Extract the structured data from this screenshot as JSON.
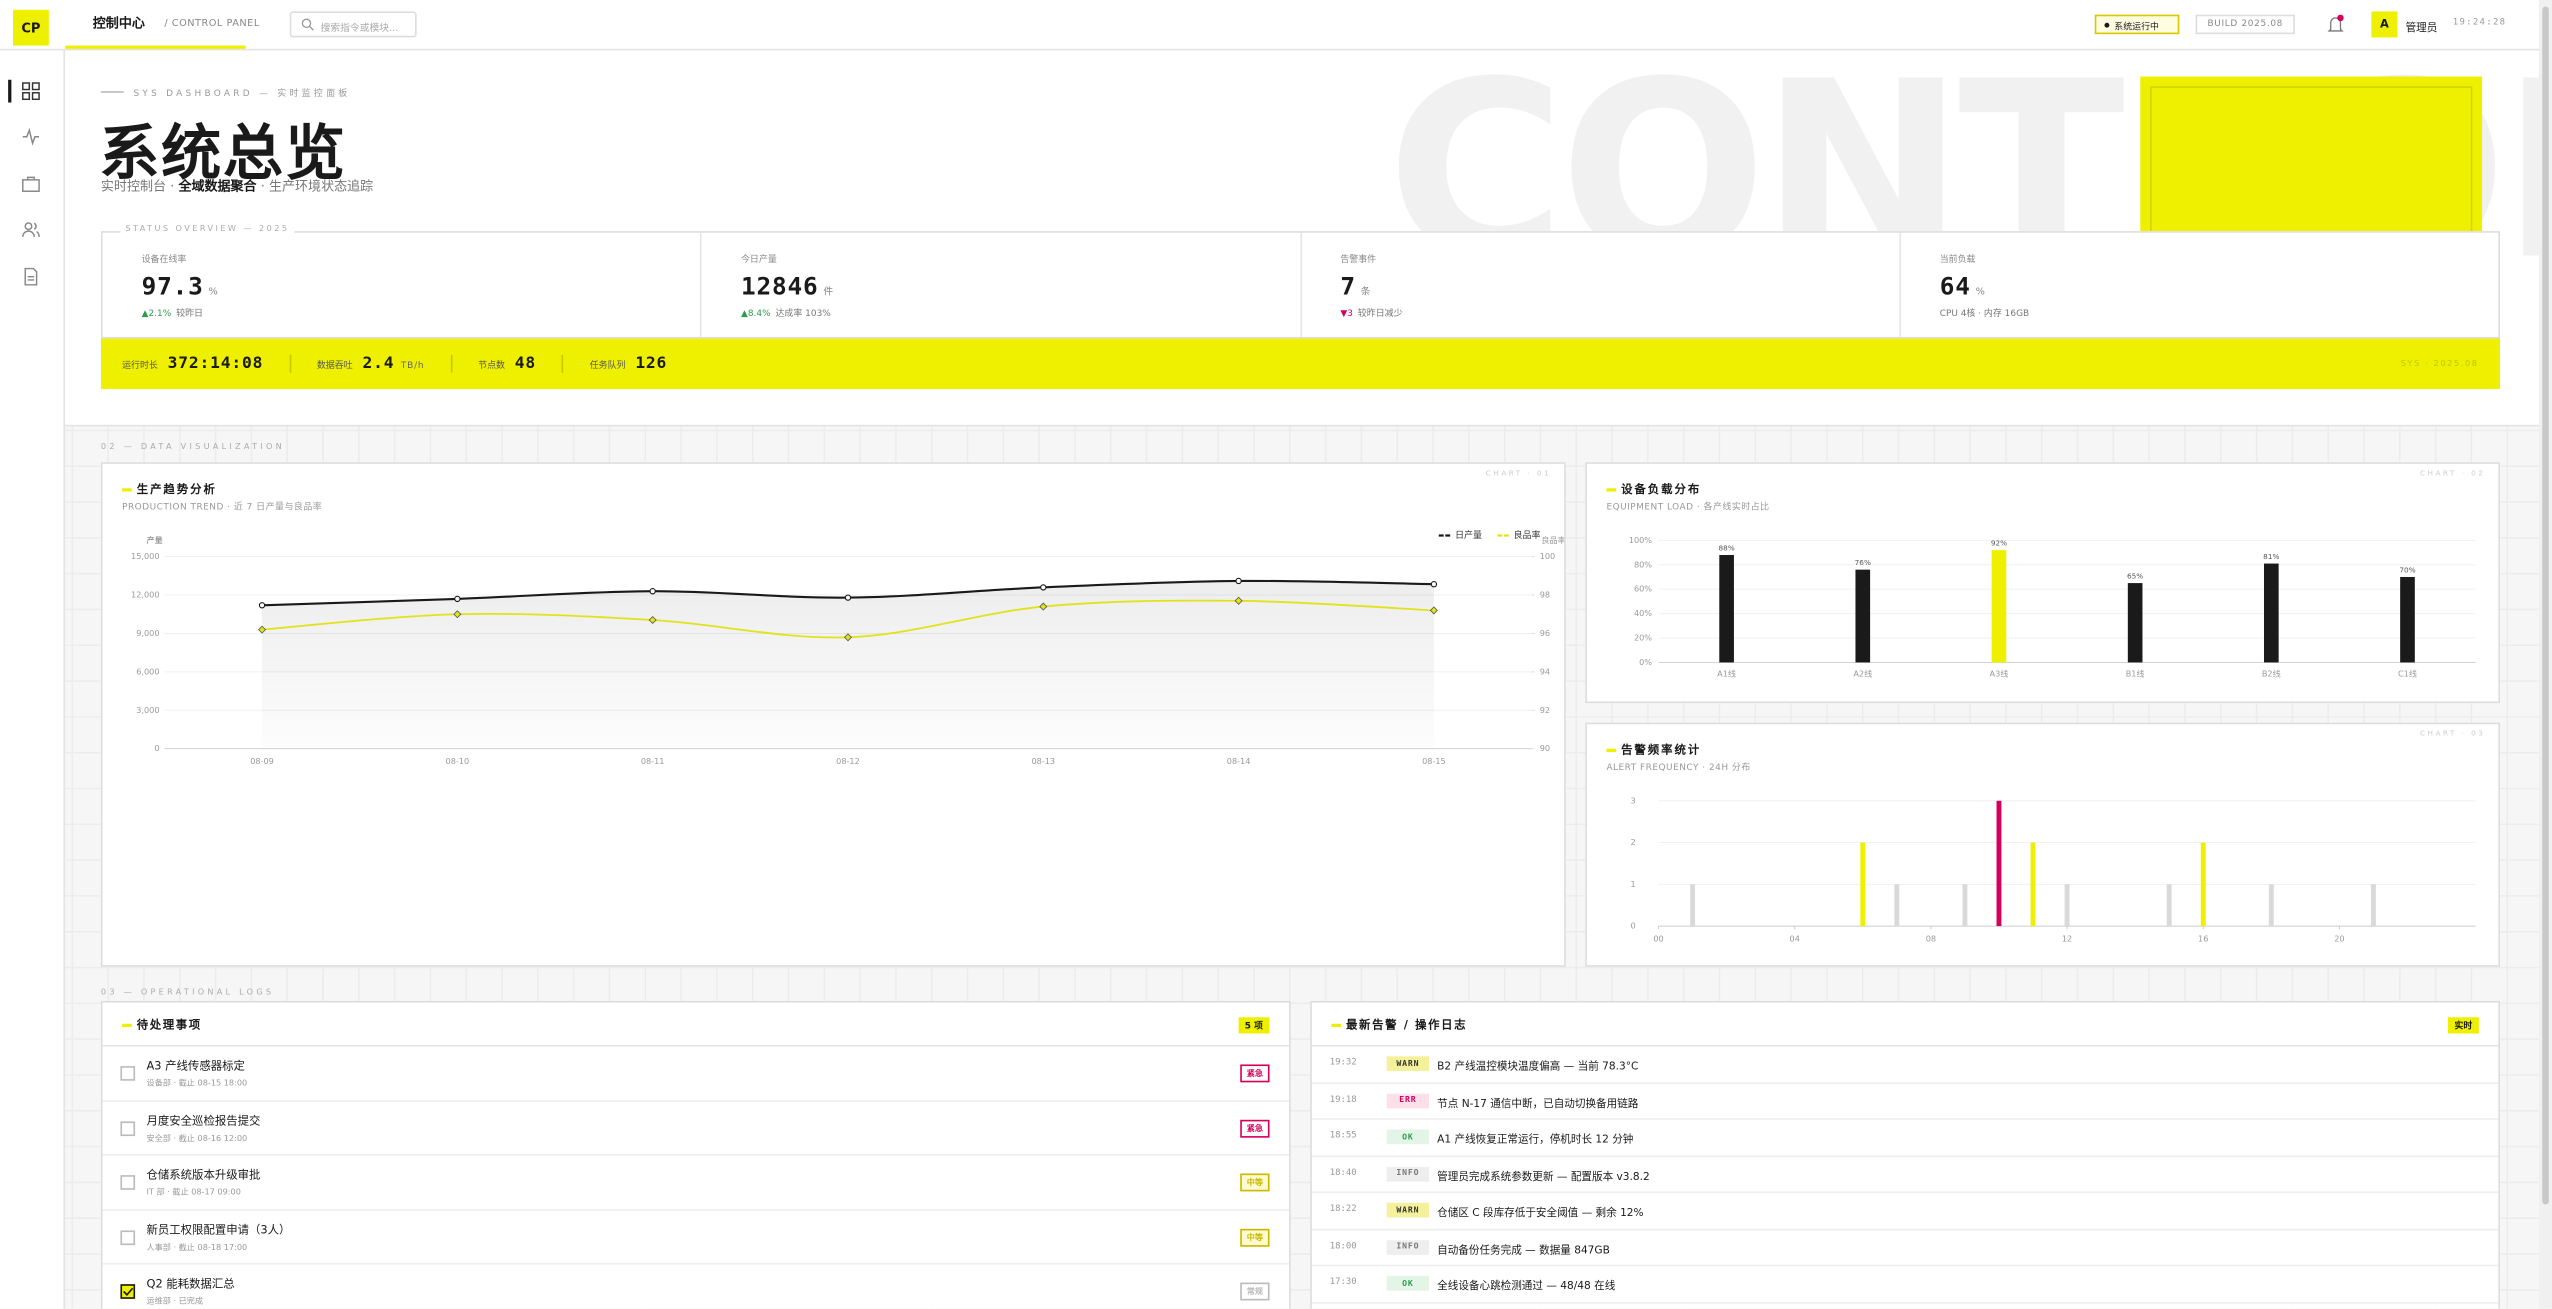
{
  "topbar": {
    "logo": "CP",
    "title": "控制中心",
    "subtitle": "/ CONTROL PANEL",
    "search_placeholder": "搜索指令或模块...",
    "status": "系统运行中",
    "build": "BUILD 2025.08",
    "avatar": "A",
    "user": "管理员",
    "time": "19:24:28"
  },
  "hero": {
    "eyebrow": "SYS DASHBOARD — 实时监控面板",
    "title": "系统总览",
    "subtitle": [
      "实时控制台 · ",
      "全域数据聚合",
      " · 生产环境状态追踪"
    ],
    "background_text": "CONTROL"
  },
  "overview": {
    "label": "STATUS OVERVIEW — 2025",
    "stats": [
      {
        "label": "设备在线率",
        "value": 97.3,
        "unit": "%",
        "delta": "▲2.1%",
        "delta_color": "#2e9b4f",
        "note": "较昨日"
      },
      {
        "label": "今日产量",
        "value": 12846,
        "unit": "件",
        "delta": "▲8.4%",
        "delta_color": "#2e9b4f",
        "note": "达成率 103%"
      },
      {
        "label": "告警事件",
        "value": 7,
        "unit": "条",
        "delta": "▼3",
        "delta_color": "#d6005c",
        "note": "较昨日减少"
      },
      {
        "label": "当前负载",
        "value": 64,
        "unit": "%",
        "note": "CPU 4核 · 内存 16GB"
      }
    ],
    "strip": [
      {
        "label": "运行时长",
        "value": "372:14:08"
      },
      {
        "label": "数据吞吐",
        "value": 2.4,
        "unit": "TB/h"
      },
      {
        "label": "节点数",
        "value": 48
      },
      {
        "label": "任务队列",
        "value": 126
      }
    ],
    "strip_tag": "SYS · 2025.08"
  },
  "sections": [
    "02 — DATA VISUALIZATION",
    "03 — OPERATIONAL LOGS"
  ],
  "chart_data": [
    {
      "type": "line",
      "title": "生产趋势分析",
      "subtitle": "PRODUCTION TREND · 近 7 日产量与良品率",
      "tag": "CHART · 01",
      "categories": [
        "08-09",
        "08-10",
        "08-11",
        "08-12",
        "08-13",
        "08-14",
        "08-15"
      ],
      "series": [
        {
          "name": "日产量",
          "color": "#1a1a1a",
          "values": [
            11200,
            11700,
            12300,
            11800,
            12600,
            13100,
            12846
          ]
        },
        {
          "name": "良品率",
          "color": "#e2e21a",
          "axis": "y2",
          "values": [
            96.2,
            97.0,
            96.7,
            95.8,
            97.4,
            97.7,
            97.2
          ]
        }
      ],
      "ylabel": "产量",
      "y2label": "良品率",
      "ylim": [
        0,
        15000
      ],
      "yticks": [
        0,
        {
          "value": 3000,
          "label": "3,000"
        },
        {
          "value": 6000,
          "label": "6,000"
        },
        {
          "value": 9000,
          "label": "9,000"
        },
        {
          "value": 12000,
          "label": "12,000"
        },
        {
          "value": 15000,
          "label": "15,000"
        }
      ],
      "y2lim": [
        90,
        100
      ],
      "y2ticks": [
        90,
        92,
        94,
        96,
        98,
        100
      ],
      "grid": true,
      "legend": "top-right"
    },
    {
      "type": "bar",
      "title": "设备负载分布",
      "subtitle": "EQUIPMENT LOAD · 各产线实时占比",
      "tag": "CHART · 02",
      "categories": [
        "A1线",
        "A2线",
        "A3线",
        "B1线",
        "B2线",
        "C1线"
      ],
      "values": [
        88,
        76,
        92,
        65,
        81,
        70
      ],
      "value_labels": [
        "88%",
        "76%",
        "92%",
        "65%",
        "81%",
        "70%"
      ],
      "colors": [
        "#1a1a1a",
        "#1a1a1a",
        "#eef000",
        "#1a1a1a",
        "#1a1a1a",
        "#1a1a1a"
      ],
      "ylim": [
        0,
        100
      ],
      "yticks": [
        {
          "value": 0,
          "label": "0%"
        },
        {
          "value": 20,
          "label": "20%"
        },
        {
          "value": 40,
          "label": "40%"
        },
        {
          "value": 60,
          "label": "60%"
        },
        {
          "value": 80,
          "label": "80%"
        },
        {
          "value": 100,
          "label": "100%"
        }
      ],
      "grid": true
    },
    {
      "type": "bar",
      "title": "告警频率统计",
      "subtitle": "ALERT FREQUENCY · 24H 分布",
      "tag": "CHART · 03",
      "x": [
        0,
        1,
        2,
        3,
        4,
        5,
        6,
        7,
        8,
        9,
        10,
        11,
        12,
        13,
        14,
        15,
        16,
        17,
        18,
        19,
        20,
        21,
        22,
        23
      ],
      "values": [
        0,
        1,
        0,
        0,
        0,
        0,
        2,
        1,
        0,
        1,
        3,
        2,
        1,
        0,
        0,
        1,
        2,
        0,
        1,
        0,
        0,
        1,
        0,
        0
      ],
      "colors": [
        "#d9d9d9",
        "#d9d9d9",
        "#d9d9d9",
        "#d9d9d9",
        "#d9d9d9",
        "#d9d9d9",
        "#eef000",
        "#d9d9d9",
        "#d9d9d9",
        "#d9d9d9",
        "#d6005c",
        "#eef000",
        "#d9d9d9",
        "#d9d9d9",
        "#d9d9d9",
        "#d9d9d9",
        "#eef000",
        "#d9d9d9",
        "#d9d9d9",
        "#d9d9d9",
        "#d9d9d9",
        "#d9d9d9",
        "#d9d9d9",
        "#d9d9d9"
      ],
      "xlim": [
        0,
        24
      ],
      "xticks": [
        {
          "value": 0,
          "label": "00"
        },
        {
          "value": 4,
          "label": "04"
        },
        {
          "value": 8,
          "label": "08"
        },
        {
          "value": 12,
          "label": "12"
        },
        {
          "value": 16,
          "label": "16"
        },
        {
          "value": 20,
          "label": "20"
        }
      ],
      "ylim": [
        0,
        3
      ],
      "yticks": [
        0,
        1,
        2,
        3
      ],
      "grid": true
    }
  ],
  "todo": {
    "title": "待处理事项",
    "badge": "5 项",
    "items": [
      {
        "title": "A3 产线传感器标定",
        "meta": "设备部 · 截止 08-15 18:00",
        "tag": "紧急",
        "tag_color": "#d6005c",
        "tag_bg": "#ffffff",
        "done": false
      },
      {
        "title": "月度安全巡检报告提交",
        "meta": "安全部 · 截止 08-16 12:00",
        "tag": "紧急",
        "tag_color": "#d6005c",
        "tag_bg": "#ffffff",
        "done": false
      },
      {
        "title": "仓储系统版本升级审批",
        "meta": "IT 部 · 截止 08-17 09:00",
        "tag": "中等",
        "tag_color": "#c9b800",
        "tag_bg": "#fffbd0",
        "done": false
      },
      {
        "title": "新员工权限配置申请（3人）",
        "meta": "人事部 · 截止 08-18 17:00",
        "tag": "中等",
        "tag_color": "#c9b800",
        "tag_bg": "#fffbd0",
        "done": false
      },
      {
        "title": "Q2 能耗数据汇总",
        "meta": "运维部 · 已完成",
        "tag": "常规",
        "tag_color": "#bbbbbb",
        "tag_bg": "#ffffff",
        "done": true
      }
    ]
  },
  "logs": {
    "title": "最新告警 / 操作日志",
    "badge": "实时",
    "levels": {
      "WARN": {
        "bg": "#f4f19a",
        "fg": "#333333"
      },
      "ERR": {
        "bg": "#fbe0ea",
        "fg": "#d6005c"
      },
      "OK": {
        "bg": "#e2f5e6",
        "fg": "#2e9b4f"
      },
      "INFO": {
        "bg": "#eeeeee",
        "fg": "#777777"
      }
    },
    "entries": [
      {
        "time": "19:32",
        "level": "WARN",
        "text": "B2 产线温控模块温度偏高 — 当前 78.3°C"
      },
      {
        "time": "19:18",
        "level": "ERR",
        "text": "节点 N-17 通信中断，已自动切换备用链路"
      },
      {
        "time": "18:55",
        "level": "OK",
        "text": "A1 产线恢复正常运行，停机时长 12 分钟"
      },
      {
        "time": "18:40",
        "level": "INFO",
        "text": "管理员完成系统参数更新 — 配置版本 v3.8.2"
      },
      {
        "time": "18:22",
        "level": "WARN",
        "text": "仓储区 C 段库存低于安全阈值 — 剩余 12%"
      },
      {
        "time": "18:00",
        "level": "INFO",
        "text": "自动备份任务完成 — 数据量 847GB"
      },
      {
        "time": "17:30",
        "level": "OK",
        "text": "全线设备心跳检测通过 — 48/48 在线"
      }
    ]
  }
}
